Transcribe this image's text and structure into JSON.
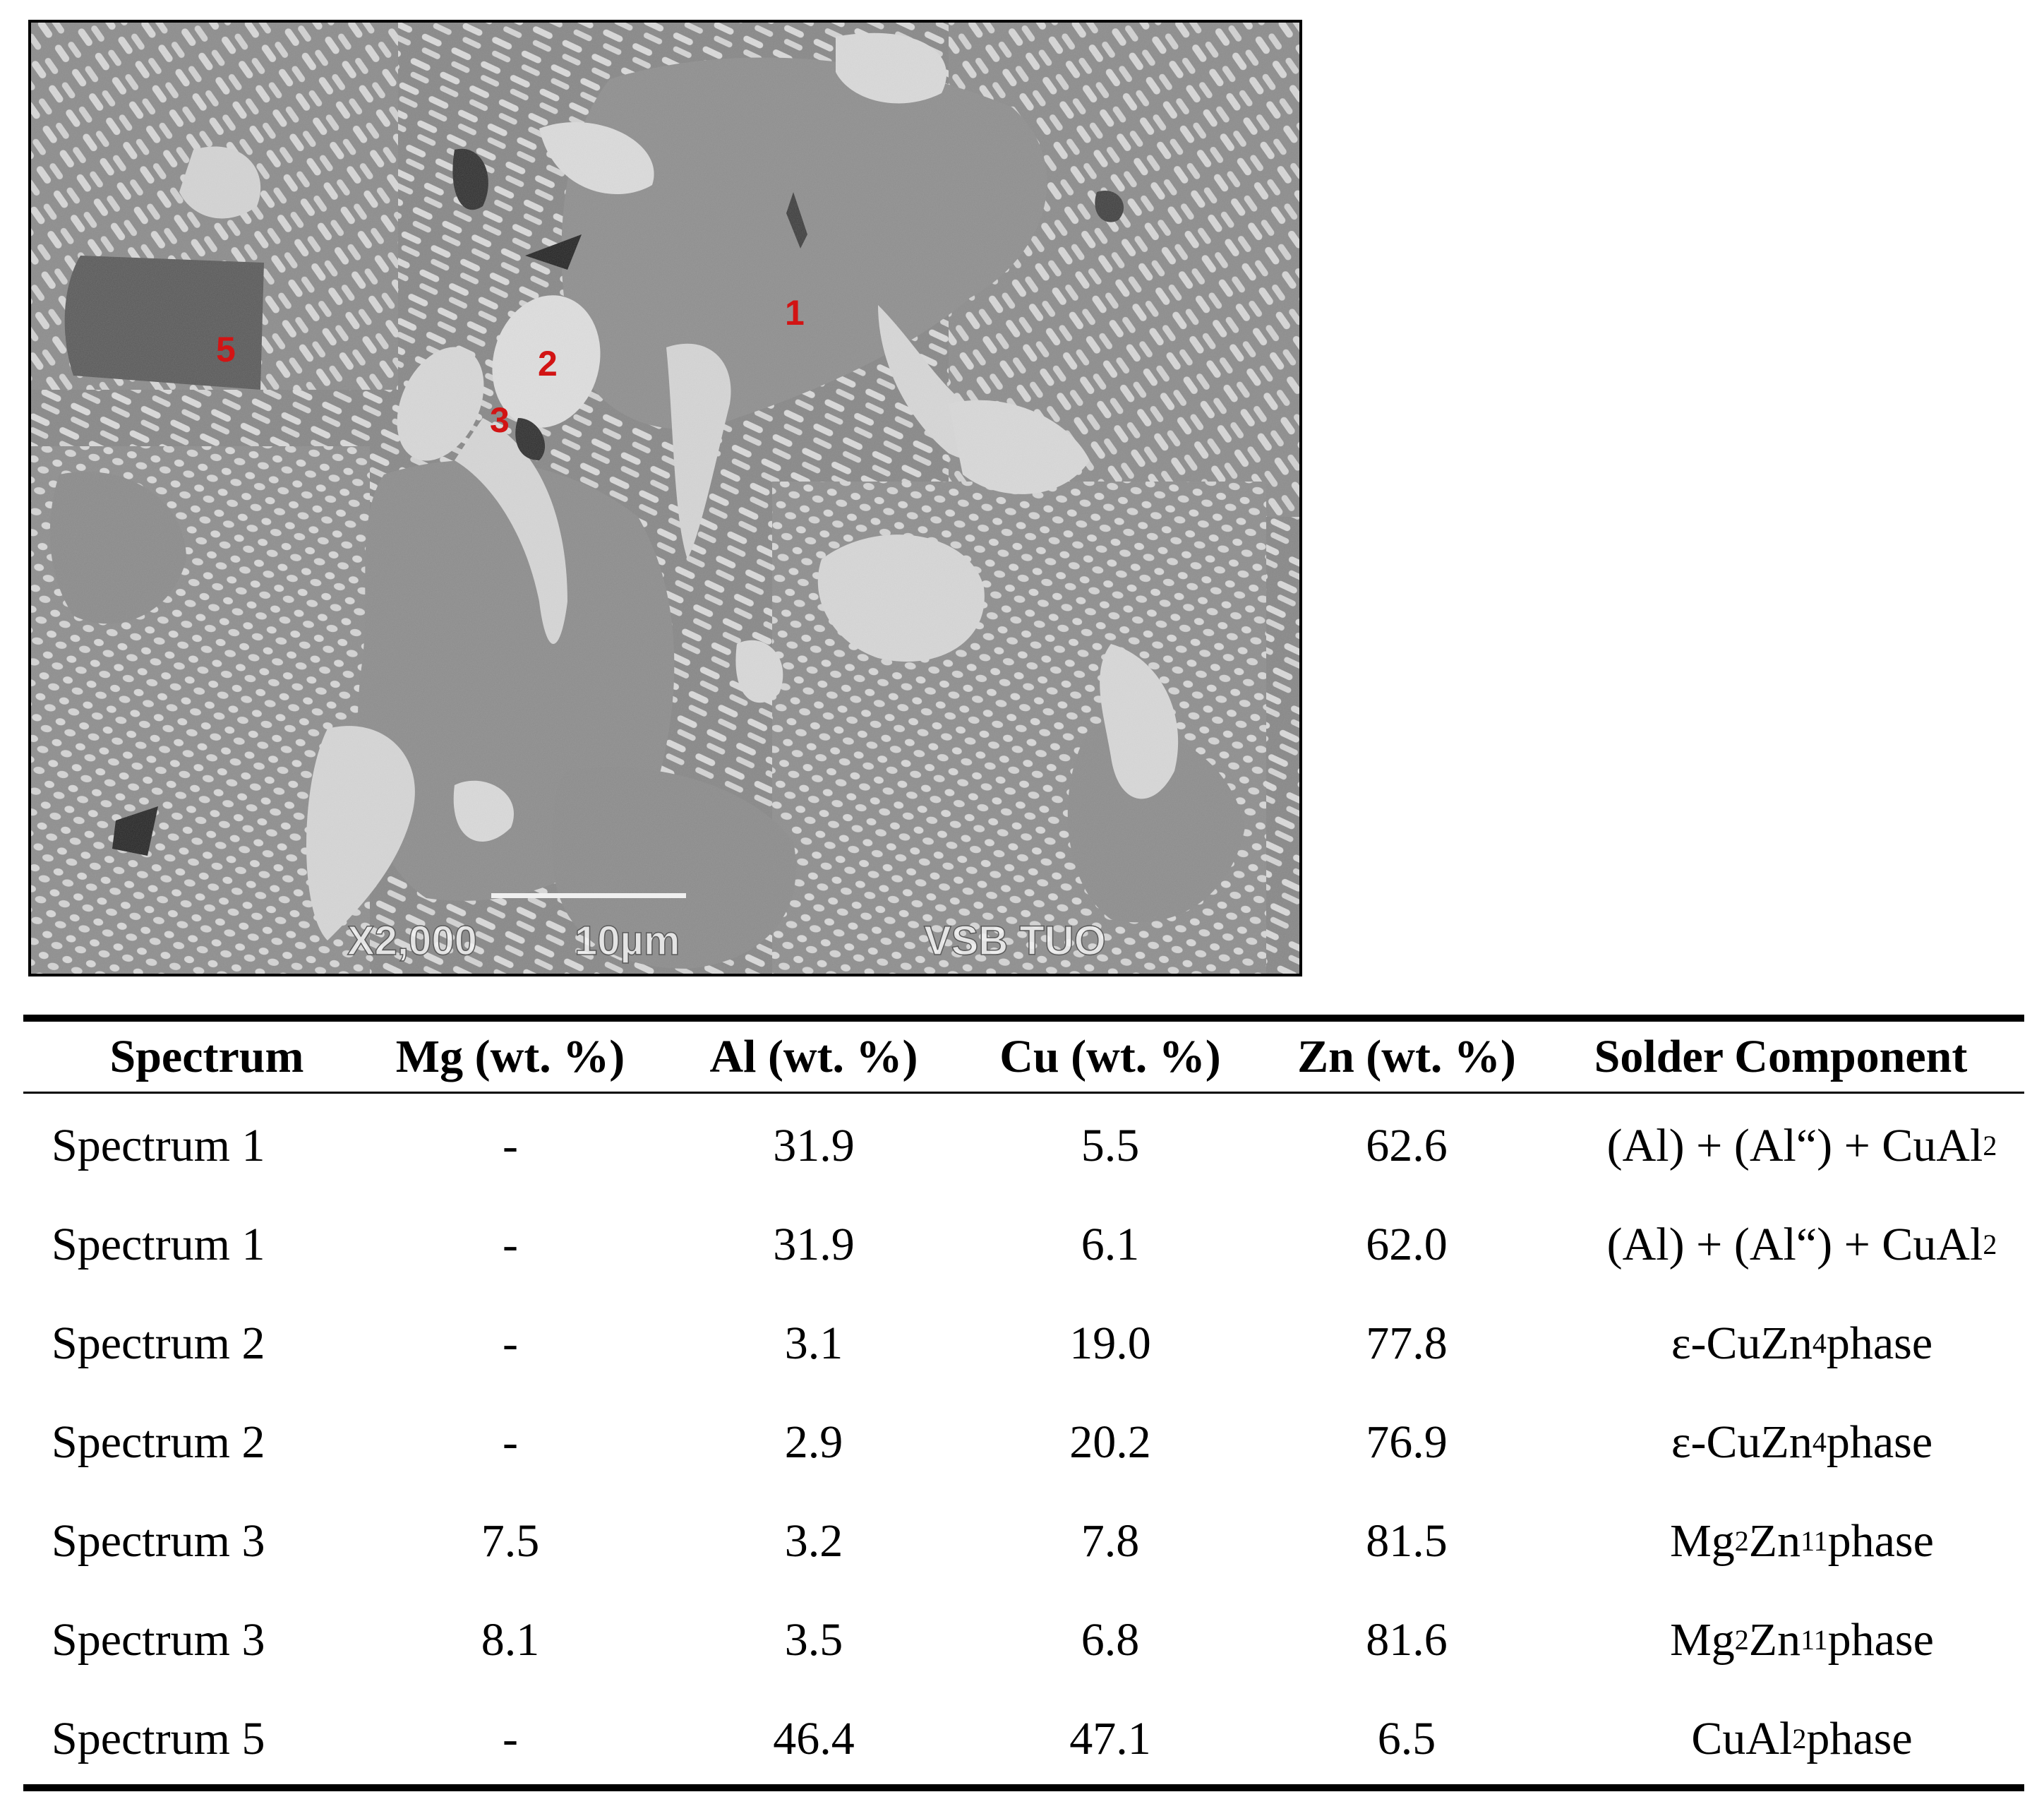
{
  "micrograph": {
    "spot_labels": [
      "1",
      "2",
      "3",
      "5"
    ],
    "magnification": "X2,000",
    "scale_bar": "10µm",
    "institution": "VSB TUO",
    "colors": {
      "label_red": "#d21414",
      "matrix_gray": "#8f8f8f",
      "phase_light": "#d9d9d9",
      "phase_dark": "#5e5e5e"
    }
  },
  "table": {
    "headers": [
      "Spectrum",
      "Mg (wt. %)",
      "Al (wt. %)",
      "Cu (wt. %)",
      "Zn (wt. %)",
      "Solder Component"
    ],
    "rows": [
      {
        "spectrum": "Spectrum 1",
        "mg": "-",
        "al": "31.9",
        "cu": "5.5",
        "zn": "62.6",
        "component": {
          "a": "(Al) + (Al“) + CuAl",
          "sub1": "2"
        }
      },
      {
        "spectrum": "Spectrum 1",
        "mg": "-",
        "al": "31.9",
        "cu": "6.1",
        "zn": "62.0",
        "component": {
          "a": "(Al) + (Al“) + CuAl",
          "sub1": "2"
        }
      },
      {
        "spectrum": "Spectrum 2",
        "mg": "-",
        "al": "3.1",
        "cu": "19.0",
        "zn": "77.8",
        "component": {
          "a": "ε-CuZn",
          "sub1": "4",
          "b": " phase"
        }
      },
      {
        "spectrum": "Spectrum 2",
        "mg": "-",
        "al": "2.9",
        "cu": "20.2",
        "zn": "76.9",
        "component": {
          "a": "ε-CuZn",
          "sub1": "4",
          "b": " phase"
        }
      },
      {
        "spectrum": "Spectrum 3",
        "mg": "7.5",
        "al": "3.2",
        "cu": "7.8",
        "zn": "81.5",
        "component": {
          "a": "Mg",
          "sub1": "2",
          "b": "Zn",
          "sub2": "11",
          "c": " phase"
        }
      },
      {
        "spectrum": "Spectrum 3",
        "mg": "8.1",
        "al": "3.5",
        "cu": "6.8",
        "zn": "81.6",
        "component": {
          "a": "Mg",
          "sub1": "2",
          "b": "Zn",
          "sub2": "11",
          "c": " phase"
        }
      },
      {
        "spectrum": "Spectrum 5",
        "mg": "-",
        "al": "46.4",
        "cu": "47.1",
        "zn": "6.5",
        "component": {
          "a": "CuAl",
          "sub1": "2",
          "b": " phase"
        }
      }
    ]
  }
}
